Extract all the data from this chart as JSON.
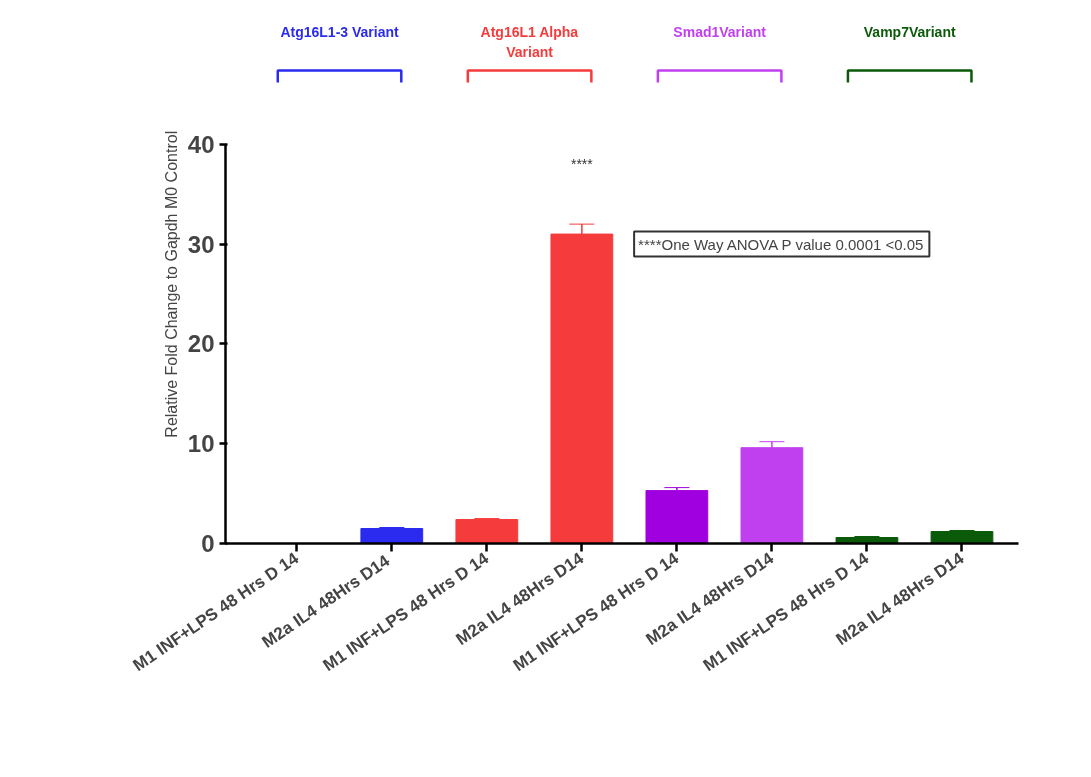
{
  "chart_data": {
    "type": "bar",
    "ylabel": "Relative Fold Change  to Gapdh M0 Control",
    "categories": [
      "M1 INF+LPS 48 Hrs D 14",
      "M2a IL4 48Hrs  D14",
      "M1 INF+LPS 48 Hrs D 14",
      "M2a IL4 48Hrs D14",
      "M1 INF+LPS 48 Hrs D 14",
      "M2a IL4 48Hrs D14",
      "M1 INF+LPS 48 Hrs D 14",
      "M2a IL4 48Hrs D14"
    ],
    "values": [
      0,
      1.5,
      2.4,
      31,
      5.3,
      9.6,
      0.6,
      1.2
    ],
    "errors": [
      null,
      0.1,
      0.1,
      1,
      0.3,
      0.6,
      0.1,
      0.1
    ],
    "colors": [
      "#3030f0",
      "#2b2bef",
      "#f53b3b",
      "#f53b3b",
      "#a000e0",
      "#c040f0",
      "#0a5a0a",
      "#0a5a0a"
    ],
    "ylim": [
      0,
      40
    ],
    "yticks": [
      0,
      10,
      20,
      30,
      40
    ],
    "grid": false,
    "annotations": [
      "Atg16L1-3 Variant",
      "Atg16L1 Alpha\nVariant",
      "Smad1Variant",
      "Vamp7Variant",
      "****",
      "****One Way ANOVA P value 0.0001 <0.05"
    ]
  }
}
